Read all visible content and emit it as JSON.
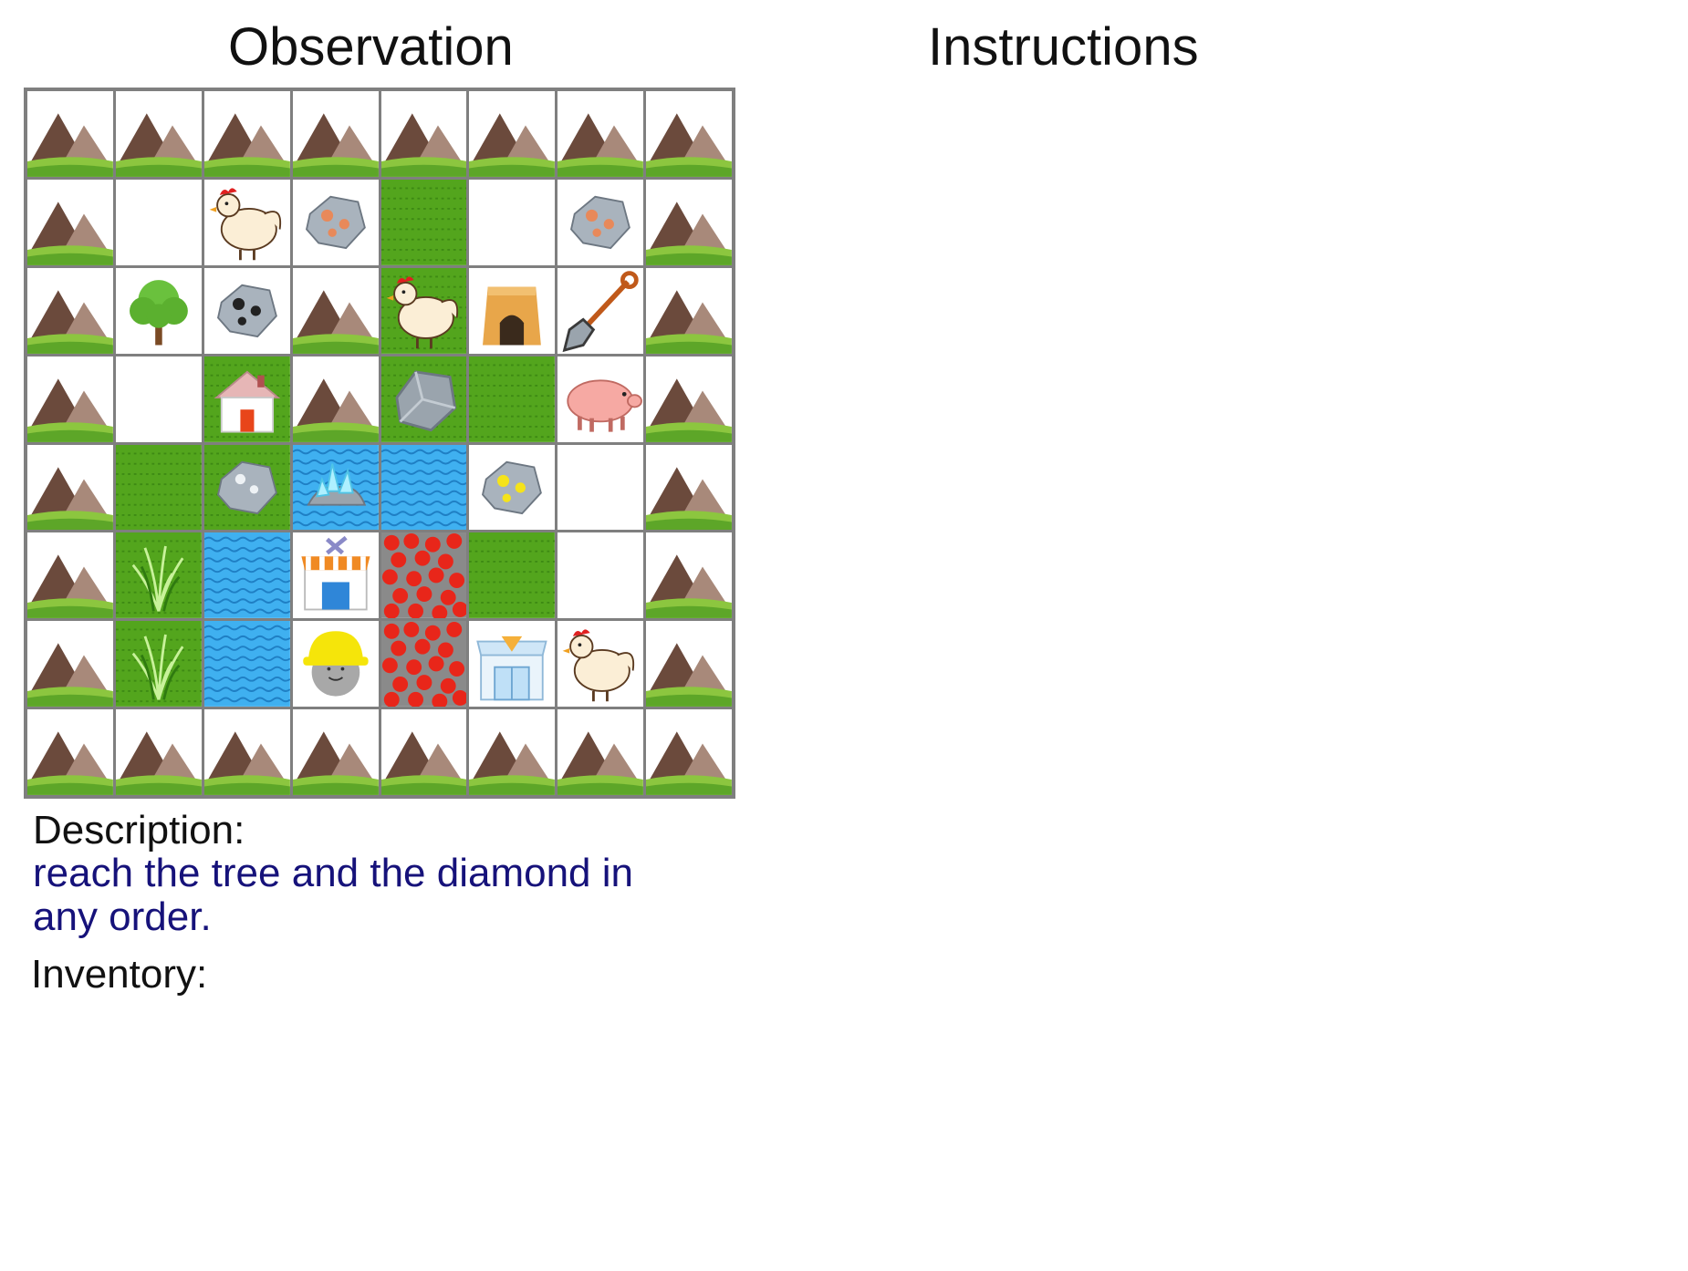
{
  "headers": {
    "observation": "Observation",
    "instructions": "Instructions"
  },
  "grid": {
    "rows": [
      [
        "mountain",
        "mountain",
        "mountain",
        "mountain",
        "mountain",
        "mountain",
        "mountain",
        "mountain"
      ],
      [
        "mountain",
        "path",
        "chicken",
        "iron",
        "grass",
        "path",
        "iron",
        "mountain"
      ],
      [
        "mountain",
        "tree",
        "coal",
        "mountain",
        "chicken-on-grass",
        "furnace",
        "shovel",
        "mountain"
      ],
      [
        "mountain",
        "path",
        "house-on-grass",
        "mountain",
        "stone-on-grass",
        "grass",
        "pig",
        "mountain"
      ],
      [
        "mountain",
        "grass",
        "stone-ore-on-grass",
        "diamond-on-water",
        "water",
        "gold",
        "path",
        "mountain"
      ],
      [
        "mountain",
        "tall-grass",
        "water",
        "workshop",
        "lava",
        "grass",
        "path",
        "mountain"
      ],
      [
        "mountain",
        "tall-grass",
        "water",
        "player",
        "lava",
        "shop",
        "chicken",
        "mountain"
      ],
      [
        "mountain",
        "mountain",
        "mountain",
        "mountain",
        "mountain",
        "mountain",
        "mountain",
        "mountain"
      ]
    ]
  },
  "description": {
    "label": "Description:",
    "text": "reach the tree and the diamond in any order."
  },
  "inventory": {
    "label": "Inventory:"
  },
  "colors": {
    "grid_border": "#7f7f7f",
    "grass": "#53a51d",
    "water": "#3fb0f0",
    "lava": "#e8261a",
    "description_text": "#16127a"
  }
}
